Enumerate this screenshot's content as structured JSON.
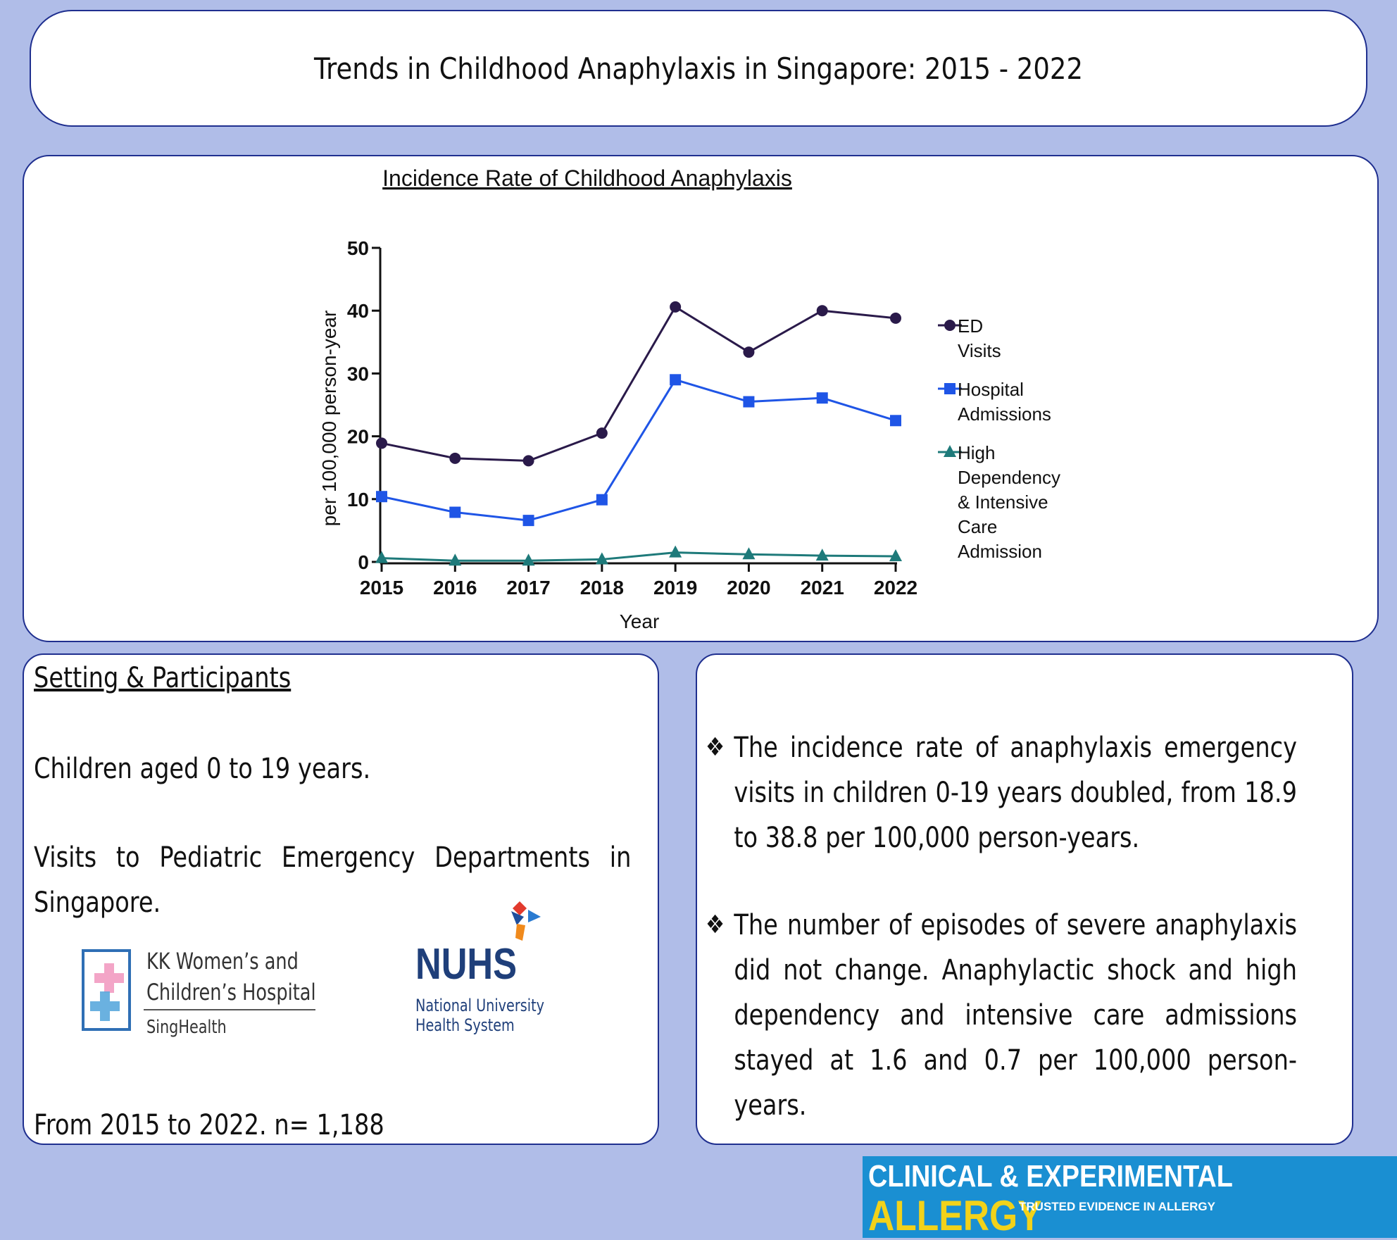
{
  "title": "Trends in Childhood Anaphylaxis in Singapore: 2015 - 2022",
  "chart_data": {
    "type": "line",
    "title": "Incidence Rate of Childhood Anaphylaxis",
    "xlabel": "Year",
    "ylabel": "per 100,000 person-year",
    "categories": [
      "2015",
      "2016",
      "2017",
      "2018",
      "2019",
      "2020",
      "2021",
      "2022"
    ],
    "ylim": [
      0,
      50
    ],
    "yticks": [
      0,
      10,
      20,
      30,
      40,
      50
    ],
    "legend_position": "right",
    "series": [
      {
        "name": "ED Visits",
        "legend_lines": [
          "ED",
          "Visits"
        ],
        "marker": "circle",
        "color": "#2a1a4a",
        "values": [
          18.9,
          16.5,
          16.1,
          20.5,
          40.6,
          33.4,
          40.0,
          38.8
        ]
      },
      {
        "name": "Hospital Admissions",
        "legend_lines": [
          "Hospital",
          "Admissions"
        ],
        "marker": "square",
        "color": "#1f55e6",
        "values": [
          10.4,
          7.9,
          6.6,
          9.9,
          29.0,
          25.5,
          26.1,
          22.5
        ]
      },
      {
        "name": "High Dependency & Intensive Care Admission",
        "legend_lines": [
          "High",
          "Dependency",
          "& Intensive",
          "Care",
          "Admission"
        ],
        "marker": "triangle",
        "color": "#1e7a7a",
        "values": [
          0.6,
          0.2,
          0.2,
          0.4,
          1.5,
          1.2,
          1.0,
          0.9
        ]
      }
    ]
  },
  "setting": {
    "heading": "Setting & Participants",
    "line1": "Children aged 0 to 19 years.",
    "line2": "Visits to Pediatric Emergency Departments in Singapore.",
    "line3": "From 2015 to 2022. n= 1,188"
  },
  "logos": {
    "kk": {
      "line1": "KK Women’s and",
      "line2": "Children’s Hospital",
      "line3": "SingHealth"
    },
    "nuhs": {
      "name": "NUHS",
      "line1": "National University",
      "line2": "Health System"
    }
  },
  "findings": {
    "bullet_symbol": "❖",
    "bullet1": "The incidence rate of anaphylaxis emergency visits in children 0-19 years doubled, from 18.9 to 38.8 per 100,000 person-years.",
    "bullet2": "The number of episodes of severe anaphylaxis did not change. Anaphylactic shock and high dependency and intensive care admissions stayed at 1.6 and 0.7 per 100,000 person-years."
  },
  "journal": {
    "line1": "CLINICAL & EXPERIMENTAL",
    "line2": "ALLERGY",
    "tagline": "TRUSTED EVIDENCE IN ALLERGY"
  }
}
